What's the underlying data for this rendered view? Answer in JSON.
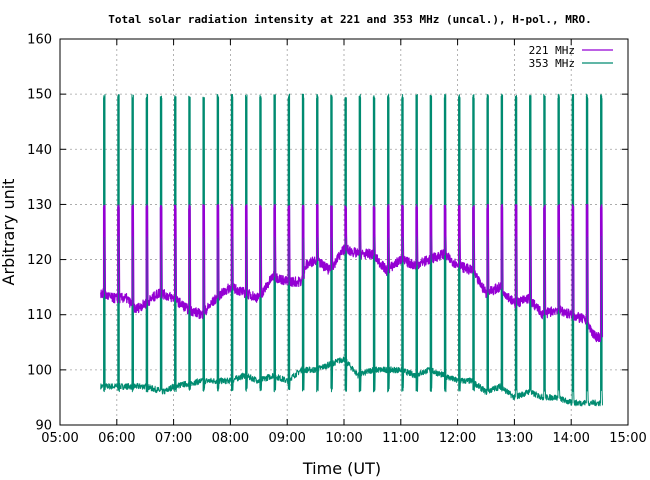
{
  "chart_data": {
    "type": "line",
    "title": "Total solar radiation intensity at 221 and 353 MHz (uncal.), H-pol., MRO.",
    "xlabel": "Time (UT)",
    "ylabel": "Arbitrary unit",
    "xlim": [
      "05:00",
      "15:00"
    ],
    "ylim": [
      90,
      160
    ],
    "x_ticks": [
      "05:00",
      "06:00",
      "07:00",
      "08:00",
      "09:00",
      "10:00",
      "11:00",
      "12:00",
      "13:00",
      "14:00",
      "15:00"
    ],
    "y_ticks": [
      90,
      100,
      110,
      120,
      130,
      140,
      150,
      160
    ],
    "grid": true,
    "legend_position": "top-right",
    "calibration_times": [
      "05:46",
      "06:01",
      "06:16",
      "06:31",
      "06:46",
      "07:01",
      "07:16",
      "07:31",
      "07:46",
      "08:01",
      "08:16",
      "08:31",
      "08:46",
      "09:01",
      "09:16",
      "09:31",
      "09:46",
      "10:01",
      "10:16",
      "10:31",
      "10:46",
      "11:01",
      "11:16",
      "11:31",
      "11:46",
      "12:01",
      "12:16",
      "12:31",
      "12:46",
      "13:01",
      "13:16",
      "13:31",
      "13:46",
      "14:01",
      "14:16",
      "14:31"
    ],
    "series": [
      {
        "name": "221 MHz",
        "color": "#9400d3",
        "start": "05:43",
        "end": "14:33",
        "cal_high": 130,
        "cal_low": 124,
        "points": [
          [
            "05:43",
            114
          ],
          [
            "05:55",
            113
          ],
          [
            "06:10",
            113
          ],
          [
            "06:20",
            111
          ],
          [
            "06:30",
            112
          ],
          [
            "06:45",
            114
          ],
          [
            "07:00",
            113
          ],
          [
            "07:15",
            111
          ],
          [
            "07:30",
            110
          ],
          [
            "07:45",
            113
          ],
          [
            "08:00",
            115
          ],
          [
            "08:15",
            114
          ],
          [
            "08:30",
            113
          ],
          [
            "08:45",
            117
          ],
          [
            "09:00",
            116
          ],
          [
            "09:15",
            116
          ],
          [
            "09:20",
            119
          ],
          [
            "09:30",
            120
          ],
          [
            "09:45",
            118
          ],
          [
            "10:00",
            122
          ],
          [
            "10:15",
            121
          ],
          [
            "10:30",
            121
          ],
          [
            "10:45",
            118
          ],
          [
            "11:00",
            120
          ],
          [
            "11:15",
            119
          ],
          [
            "11:30",
            120
          ],
          [
            "11:45",
            121
          ],
          [
            "12:00",
            119
          ],
          [
            "12:15",
            118
          ],
          [
            "12:30",
            114
          ],
          [
            "12:45",
            115
          ],
          [
            "13:00",
            112
          ],
          [
            "13:15",
            113
          ],
          [
            "13:30",
            110
          ],
          [
            "13:45",
            111
          ],
          [
            "14:00",
            110
          ],
          [
            "14:15",
            109
          ],
          [
            "14:25",
            106
          ],
          [
            "14:33",
            106
          ]
        ]
      },
      {
        "name": "353 MHz",
        "color": "#008b70",
        "start": "05:43",
        "end": "14:33",
        "cal_high": 150,
        "cal_low": 96,
        "points": [
          [
            "05:43",
            97
          ],
          [
            "06:00",
            97
          ],
          [
            "06:30",
            97
          ],
          [
            "06:50",
            96
          ],
          [
            "07:00",
            97
          ],
          [
            "07:30",
            98
          ],
          [
            "08:00",
            98
          ],
          [
            "08:15",
            99
          ],
          [
            "08:30",
            98
          ],
          [
            "08:45",
            99
          ],
          [
            "09:00",
            98
          ],
          [
            "09:15",
            100
          ],
          [
            "09:30",
            100
          ],
          [
            "09:45",
            101
          ],
          [
            "10:00",
            102
          ],
          [
            "10:15",
            99
          ],
          [
            "10:30",
            100
          ],
          [
            "10:45",
            100
          ],
          [
            "11:00",
            100
          ],
          [
            "11:15",
            99
          ],
          [
            "11:30",
            100
          ],
          [
            "11:45",
            99
          ],
          [
            "12:00",
            98
          ],
          [
            "12:15",
            98
          ],
          [
            "12:30",
            96
          ],
          [
            "12:45",
            97
          ],
          [
            "13:00",
            95
          ],
          [
            "13:15",
            96
          ],
          [
            "13:30",
            95
          ],
          [
            "13:45",
            95
          ],
          [
            "14:00",
            94
          ],
          [
            "14:15",
            94
          ],
          [
            "14:33",
            94
          ]
        ]
      }
    ]
  }
}
